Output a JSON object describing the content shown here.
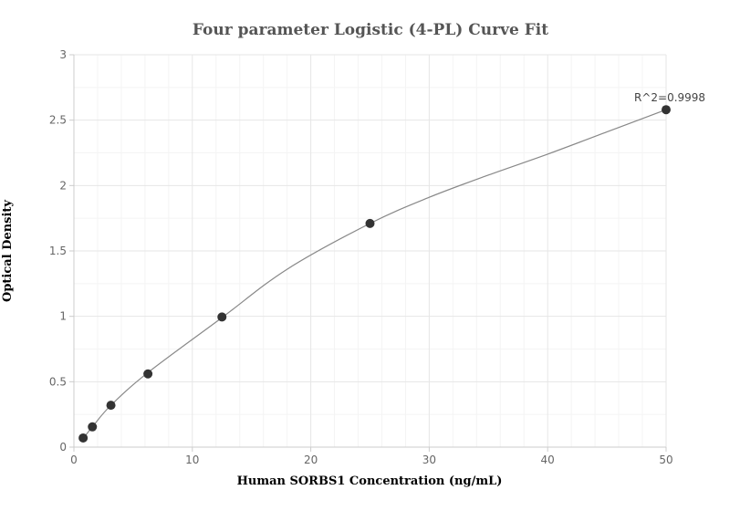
{
  "chart_data": {
    "type": "scatter",
    "title": "Four parameter Logistic (4-PL) Curve Fit",
    "xlabel": "Human SORBS1 Concentration (ng/mL)",
    "ylabel": "Optical Density",
    "xlim": [
      0,
      50
    ],
    "ylim": [
      0,
      3
    ],
    "xticks": [
      0,
      10,
      20,
      30,
      40,
      50
    ],
    "yticks": [
      0,
      0.5,
      1,
      1.5,
      2,
      2.5,
      3
    ],
    "grid": true,
    "series": [
      {
        "points": [
          {
            "x": 0.78,
            "y": 0.07
          },
          {
            "x": 1.56,
            "y": 0.155
          },
          {
            "x": 3.125,
            "y": 0.32
          },
          {
            "x": 6.25,
            "y": 0.56
          },
          {
            "x": 12.5,
            "y": 0.995
          },
          {
            "x": 25,
            "y": 1.71
          },
          {
            "x": 50,
            "y": 2.58
          }
        ]
      }
    ],
    "fit_curve": {
      "x": [
        0.78,
        1.56,
        3.125,
        6.25,
        12.5,
        18,
        25,
        30,
        35,
        40,
        45,
        50
      ],
      "y": [
        0.065,
        0.155,
        0.32,
        0.57,
        0.99,
        1.36,
        1.71,
        1.91,
        2.08,
        2.24,
        2.41,
        2.58
      ]
    },
    "annotation": {
      "text": "R^2=0.9998",
      "x": 50,
      "y": 2.58
    },
    "colors": {
      "point": "#333333",
      "curve": "#888888",
      "grid_major": "#e6e6e6",
      "grid_minor": "#f4f4f4",
      "axis": "#cccccc"
    }
  }
}
